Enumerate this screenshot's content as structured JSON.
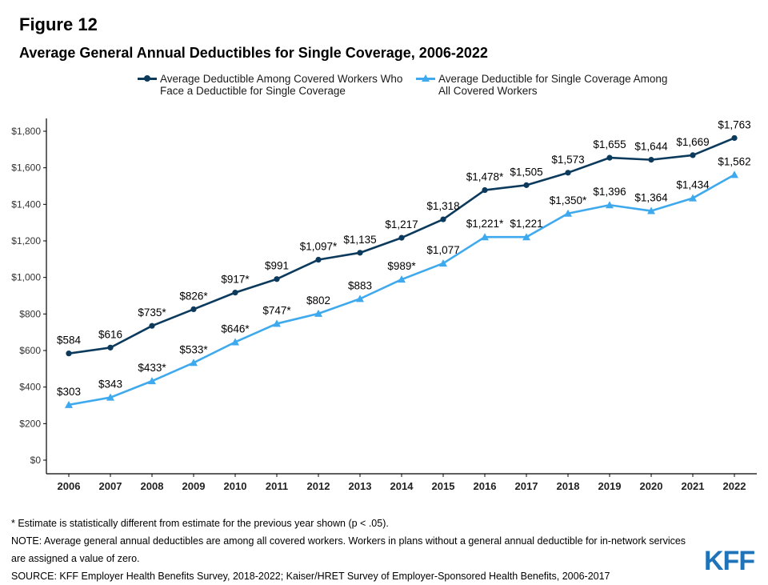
{
  "figure_label": "Figure 12",
  "chart_data": {
    "type": "line",
    "title": "Average General Annual Deductibles for Single Coverage, 2006-2022",
    "x": [
      "2006",
      "2007",
      "2008",
      "2009",
      "2010",
      "2011",
      "2012",
      "2013",
      "2014",
      "2015",
      "2016",
      "2017",
      "2018",
      "2019",
      "2020",
      "2021",
      "2022"
    ],
    "ylim": [
      0,
      1900
    ],
    "yticks": [
      0,
      200,
      400,
      600,
      800,
      1000,
      1200,
      1400,
      1600,
      1800
    ],
    "ytick_labels": [
      "$0",
      "$200",
      "$400",
      "$600",
      "$800",
      "$1,000",
      "$1,200",
      "$1,400",
      "$1,600",
      "$1,800"
    ],
    "grid": false,
    "legend_position": "top",
    "series": [
      {
        "name": "Average Deductible Among Covered Workers Who Face a Deductible for Single Coverage",
        "legend_lines": [
          "Average Deductible Among Covered Workers Who",
          "Face a Deductible for Single Coverage"
        ],
        "color": "#0b3a5c",
        "marker": "circle",
        "values": [
          584,
          616,
          735,
          826,
          917,
          991,
          1097,
          1135,
          1217,
          1318,
          1478,
          1505,
          1573,
          1655,
          1644,
          1669,
          1763
        ],
        "labels": [
          "$584",
          "$616",
          "$735*",
          "$826*",
          "$917*",
          "$991",
          "$1,097*",
          "$1,135",
          "$1,217",
          "$1,318",
          "$1,478*",
          "$1,505",
          "$1,573",
          "$1,655",
          "$1,644",
          "$1,669",
          "$1,763"
        ]
      },
      {
        "name": "Average Deductible for Single Coverage Among All Covered Workers",
        "legend_lines": [
          "Average Deductible for Single Coverage Among",
          "All Covered Workers"
        ],
        "color": "#3fa9ee",
        "marker": "triangle",
        "values": [
          303,
          343,
          433,
          533,
          646,
          747,
          802,
          883,
          989,
          1077,
          1221,
          1221,
          1350,
          1396,
          1364,
          1434,
          1562
        ],
        "labels": [
          "$303",
          "$343",
          "$433*",
          "$533*",
          "$646*",
          "$747*",
          "$802",
          "$883",
          "$989*",
          "$1,077",
          "$1,221*",
          "$1,221",
          "$1,350*",
          "$1,396",
          "$1,364",
          "$1,434",
          "$1,562"
        ]
      }
    ]
  },
  "footnotes": {
    "estimate": "* Estimate is statistically different from estimate for the previous year shown (p < .05).",
    "note_line1": "NOTE: Average general annual deductibles are among all covered workers. Workers in plans without a general annual deductible for in-network services",
    "note_line2": "are assigned a value of zero.",
    "source": "SOURCE: KFF Employer Health Benefits Survey, 2018-2022; Kaiser/HRET Survey of Employer-Sponsored Health Benefits, 2006-2017"
  },
  "logo_text": "KFF"
}
